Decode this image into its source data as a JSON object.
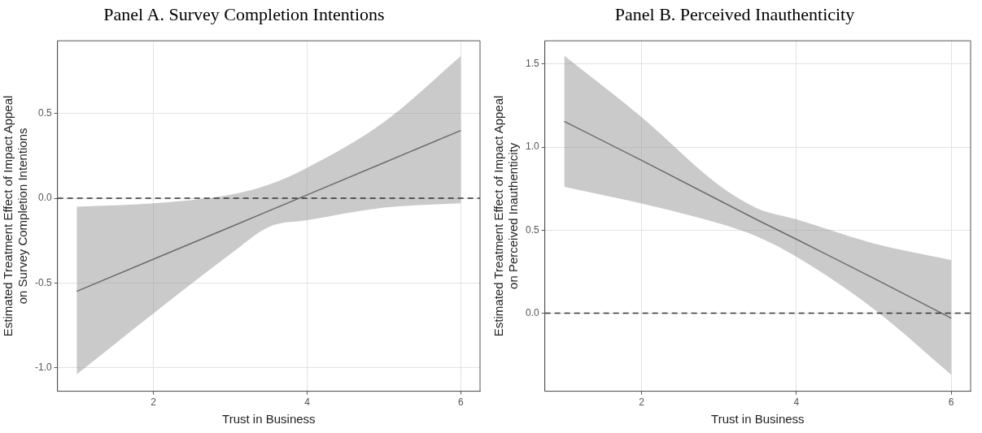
{
  "chart_data": [
    {
      "type": "line",
      "title": "Panel A. Survey Completion Intentions",
      "xlabel": "Trust in Business",
      "ylabel": "Estimated Treatment Effect of Impact Appeal\non Survey Completion Intentions",
      "series": [
        {
          "color": "#6b6b6b",
          "x": [
            1,
            2,
            3,
            3.5,
            4,
            5,
            6
          ],
          "values": [
            -0.55,
            -0.36,
            -0.17,
            -0.075,
            0.02,
            0.21,
            0.4
          ],
          "lower": [
            -1.04,
            -0.68,
            -0.33,
            -0.17,
            -0.13,
            -0.055,
            -0.03
          ],
          "upper": [
            -0.05,
            -0.03,
            0.02,
            0.08,
            0.18,
            0.45,
            0.84
          ]
        }
      ],
      "xlim": [
        0.75,
        6.25
      ],
      "xticks": [
        2,
        4,
        6
      ],
      "ylim": [
        -1.14,
        0.93
      ],
      "yticks": [
        {
          "value": -1,
          "label": "-1.0"
        },
        -0.5,
        {
          "value": 0,
          "label": "0.0"
        },
        0.5
      ],
      "ref_lines": [
        {
          "axis": "y",
          "value": 0,
          "line_style": "dashed",
          "color": "#333333"
        }
      ],
      "grid": true,
      "legend": false,
      "marker": "none"
    },
    {
      "type": "line",
      "title": "Panel B. Perceived Inauthenticity",
      "xlabel": "Trust in Business",
      "ylabel": "Estimated Treatment Effect of Impact Appeal\non Perceived Inauthenticity",
      "series": [
        {
          "color": "#6b6b6b",
          "x": [
            1,
            2,
            3,
            3.5,
            4,
            5,
            6
          ],
          "values": [
            1.155,
            0.92,
            0.68,
            0.56,
            0.445,
            0.21,
            -0.03
          ],
          "lower": [
            0.76,
            0.66,
            0.54,
            0.46,
            0.34,
            0.025,
            -0.37
          ],
          "upper": [
            1.55,
            1.18,
            0.77,
            0.63,
            0.565,
            0.42,
            0.32
          ]
        }
      ],
      "xlim": [
        0.75,
        6.25
      ],
      "xticks": [
        2,
        4,
        6
      ],
      "ylim": [
        -0.47,
        1.64
      ],
      "yticks": [
        {
          "value": 0,
          "label": "0.0"
        },
        0.5,
        {
          "value": 1,
          "label": "1.0"
        },
        1.5
      ],
      "ref_lines": [
        {
          "axis": "y",
          "value": 0,
          "line_style": "dashed",
          "color": "#333333"
        }
      ],
      "grid": true,
      "legend": false,
      "marker": "none"
    }
  ]
}
